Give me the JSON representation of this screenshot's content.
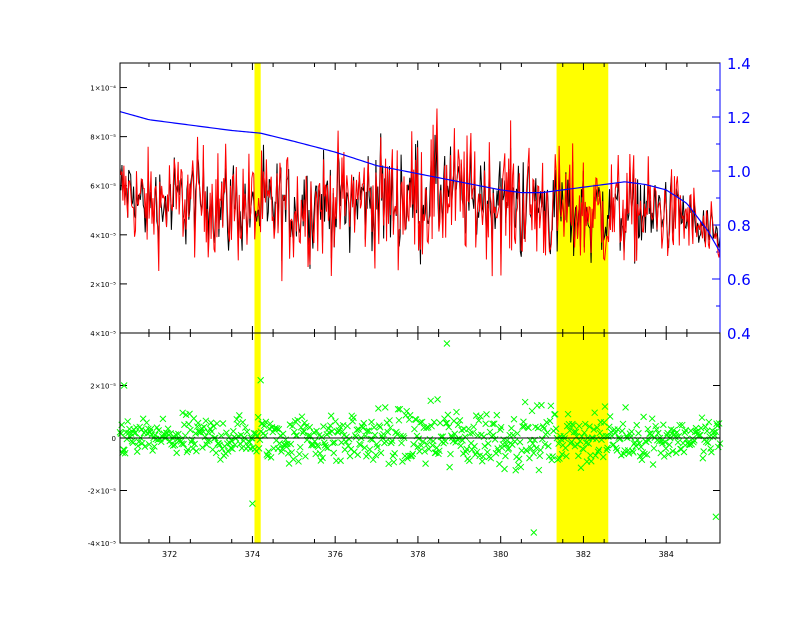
{
  "colors": {
    "background": "#ffffff",
    "axes": "#000000",
    "observed": "#000000",
    "model": "#ff0000",
    "continuum": "#0000ff",
    "residuals": "#00ff00",
    "highlight": "#ffff00"
  },
  "chart_data": [
    {
      "type": "line",
      "panel": "top",
      "xlim": [
        370.8,
        385.3
      ],
      "ylim": [
        0.0,
        0.00011
      ],
      "y2lim": [
        0.4,
        1.4
      ],
      "xticks": [
        372,
        374,
        376,
        378,
        380,
        382,
        384
      ],
      "xtick_labels": [
        "372",
        "374",
        "376",
        "378",
        "380",
        "382",
        "384"
      ],
      "yticks": [
        2e-05,
        4e-05,
        6e-05,
        8e-05,
        0.0001
      ],
      "ytick_labels": [
        "2×10⁻⁵",
        "4×10⁻⁵",
        "6×10⁻⁵",
        "8×10⁻⁵",
        "1×10⁻⁴"
      ],
      "y2ticks": [
        0.4,
        0.6,
        0.8,
        1.0,
        1.2,
        1.4
      ],
      "y2tick_labels": [
        "0.4",
        "0.6",
        "0.8",
        "1.0",
        "1.2",
        "1.4"
      ],
      "highlight_bands": [
        [
          374.05,
          374.2
        ],
        [
          381.35,
          382.6
        ]
      ],
      "continuum_series": {
        "axis": "right",
        "x": [
          370.8,
          371.5,
          372.5,
          373.5,
          374.2,
          375.0,
          376.0,
          377.0,
          378.0,
          379.0,
          380.0,
          380.5,
          381.0,
          381.5,
          382.0,
          382.5,
          383.0,
          383.5,
          384.0,
          384.5,
          385.0,
          385.3
        ],
        "values": [
          1.22,
          1.19,
          1.17,
          1.15,
          1.14,
          1.11,
          1.07,
          1.02,
          0.99,
          0.96,
          0.93,
          0.92,
          0.92,
          0.93,
          0.94,
          0.95,
          0.96,
          0.95,
          0.93,
          0.88,
          0.78,
          0.7
        ]
      },
      "observed_envelope": {
        "x": [
          370.8,
          371.5,
          372.5,
          373.5,
          374.5,
          375.5,
          376.5,
          377.5,
          378.5,
          379.5,
          380.5,
          381.5,
          382.5,
          383.5,
          384.5,
          385.3
        ],
        "mean": [
          5.8e-05,
          5.2e-05,
          5.5e-05,
          5.2e-05,
          5e-05,
          5.2e-05,
          5.5e-05,
          5.4e-05,
          5.8e-05,
          5.5e-05,
          5.3e-05,
          5e-05,
          4.9e-05,
          5e-05,
          4.7e-05,
          3.5e-05
        ],
        "amplitude": [
          1.8e-05,
          2.2e-05,
          2.4e-05,
          2.4e-05,
          2.5e-05,
          2.5e-05,
          2.5e-05,
          2.8e-05,
          3e-05,
          2.6e-05,
          2.8e-05,
          2.6e-05,
          2.6e-05,
          2.2e-05,
          1.8e-05,
          1.2e-05
        ]
      }
    },
    {
      "type": "scatter",
      "panel": "bottom",
      "xlim": [
        370.8,
        385.3
      ],
      "ylim": [
        -4e-05,
        4e-05
      ],
      "yticks": [
        -4e-05,
        -2e-05,
        0,
        2e-05,
        4e-05
      ],
      "ytick_labels": [
        "-4×10⁻⁵",
        "-2×10⁻⁵",
        "0",
        "2×10⁻⁵",
        "4×10⁻⁵"
      ],
      "zero_line": 0,
      "residual_envelope": {
        "x": [
          370.8,
          372.0,
          374.0,
          376.0,
          378.0,
          378.7,
          380.0,
          380.8,
          382.0,
          384.0,
          385.3
        ],
        "amplitude": [
          8e-06,
          9e-06,
          1e-05,
          1.1e-05,
          1.3e-05,
          1.4e-05,
          1.3e-05,
          1.3e-05,
          1.1e-05,
          9e-06,
          8e-06
        ]
      },
      "notable_points": [
        {
          "x": 378.7,
          "y": 3.6e-05
        },
        {
          "x": 380.8,
          "y": -3.6e-05
        },
        {
          "x": 374.0,
          "y": -2.5e-05
        },
        {
          "x": 374.2,
          "y": 2.2e-05
        },
        {
          "x": 385.2,
          "y": -3e-05
        },
        {
          "x": 370.9,
          "y": 2e-05
        }
      ]
    }
  ]
}
